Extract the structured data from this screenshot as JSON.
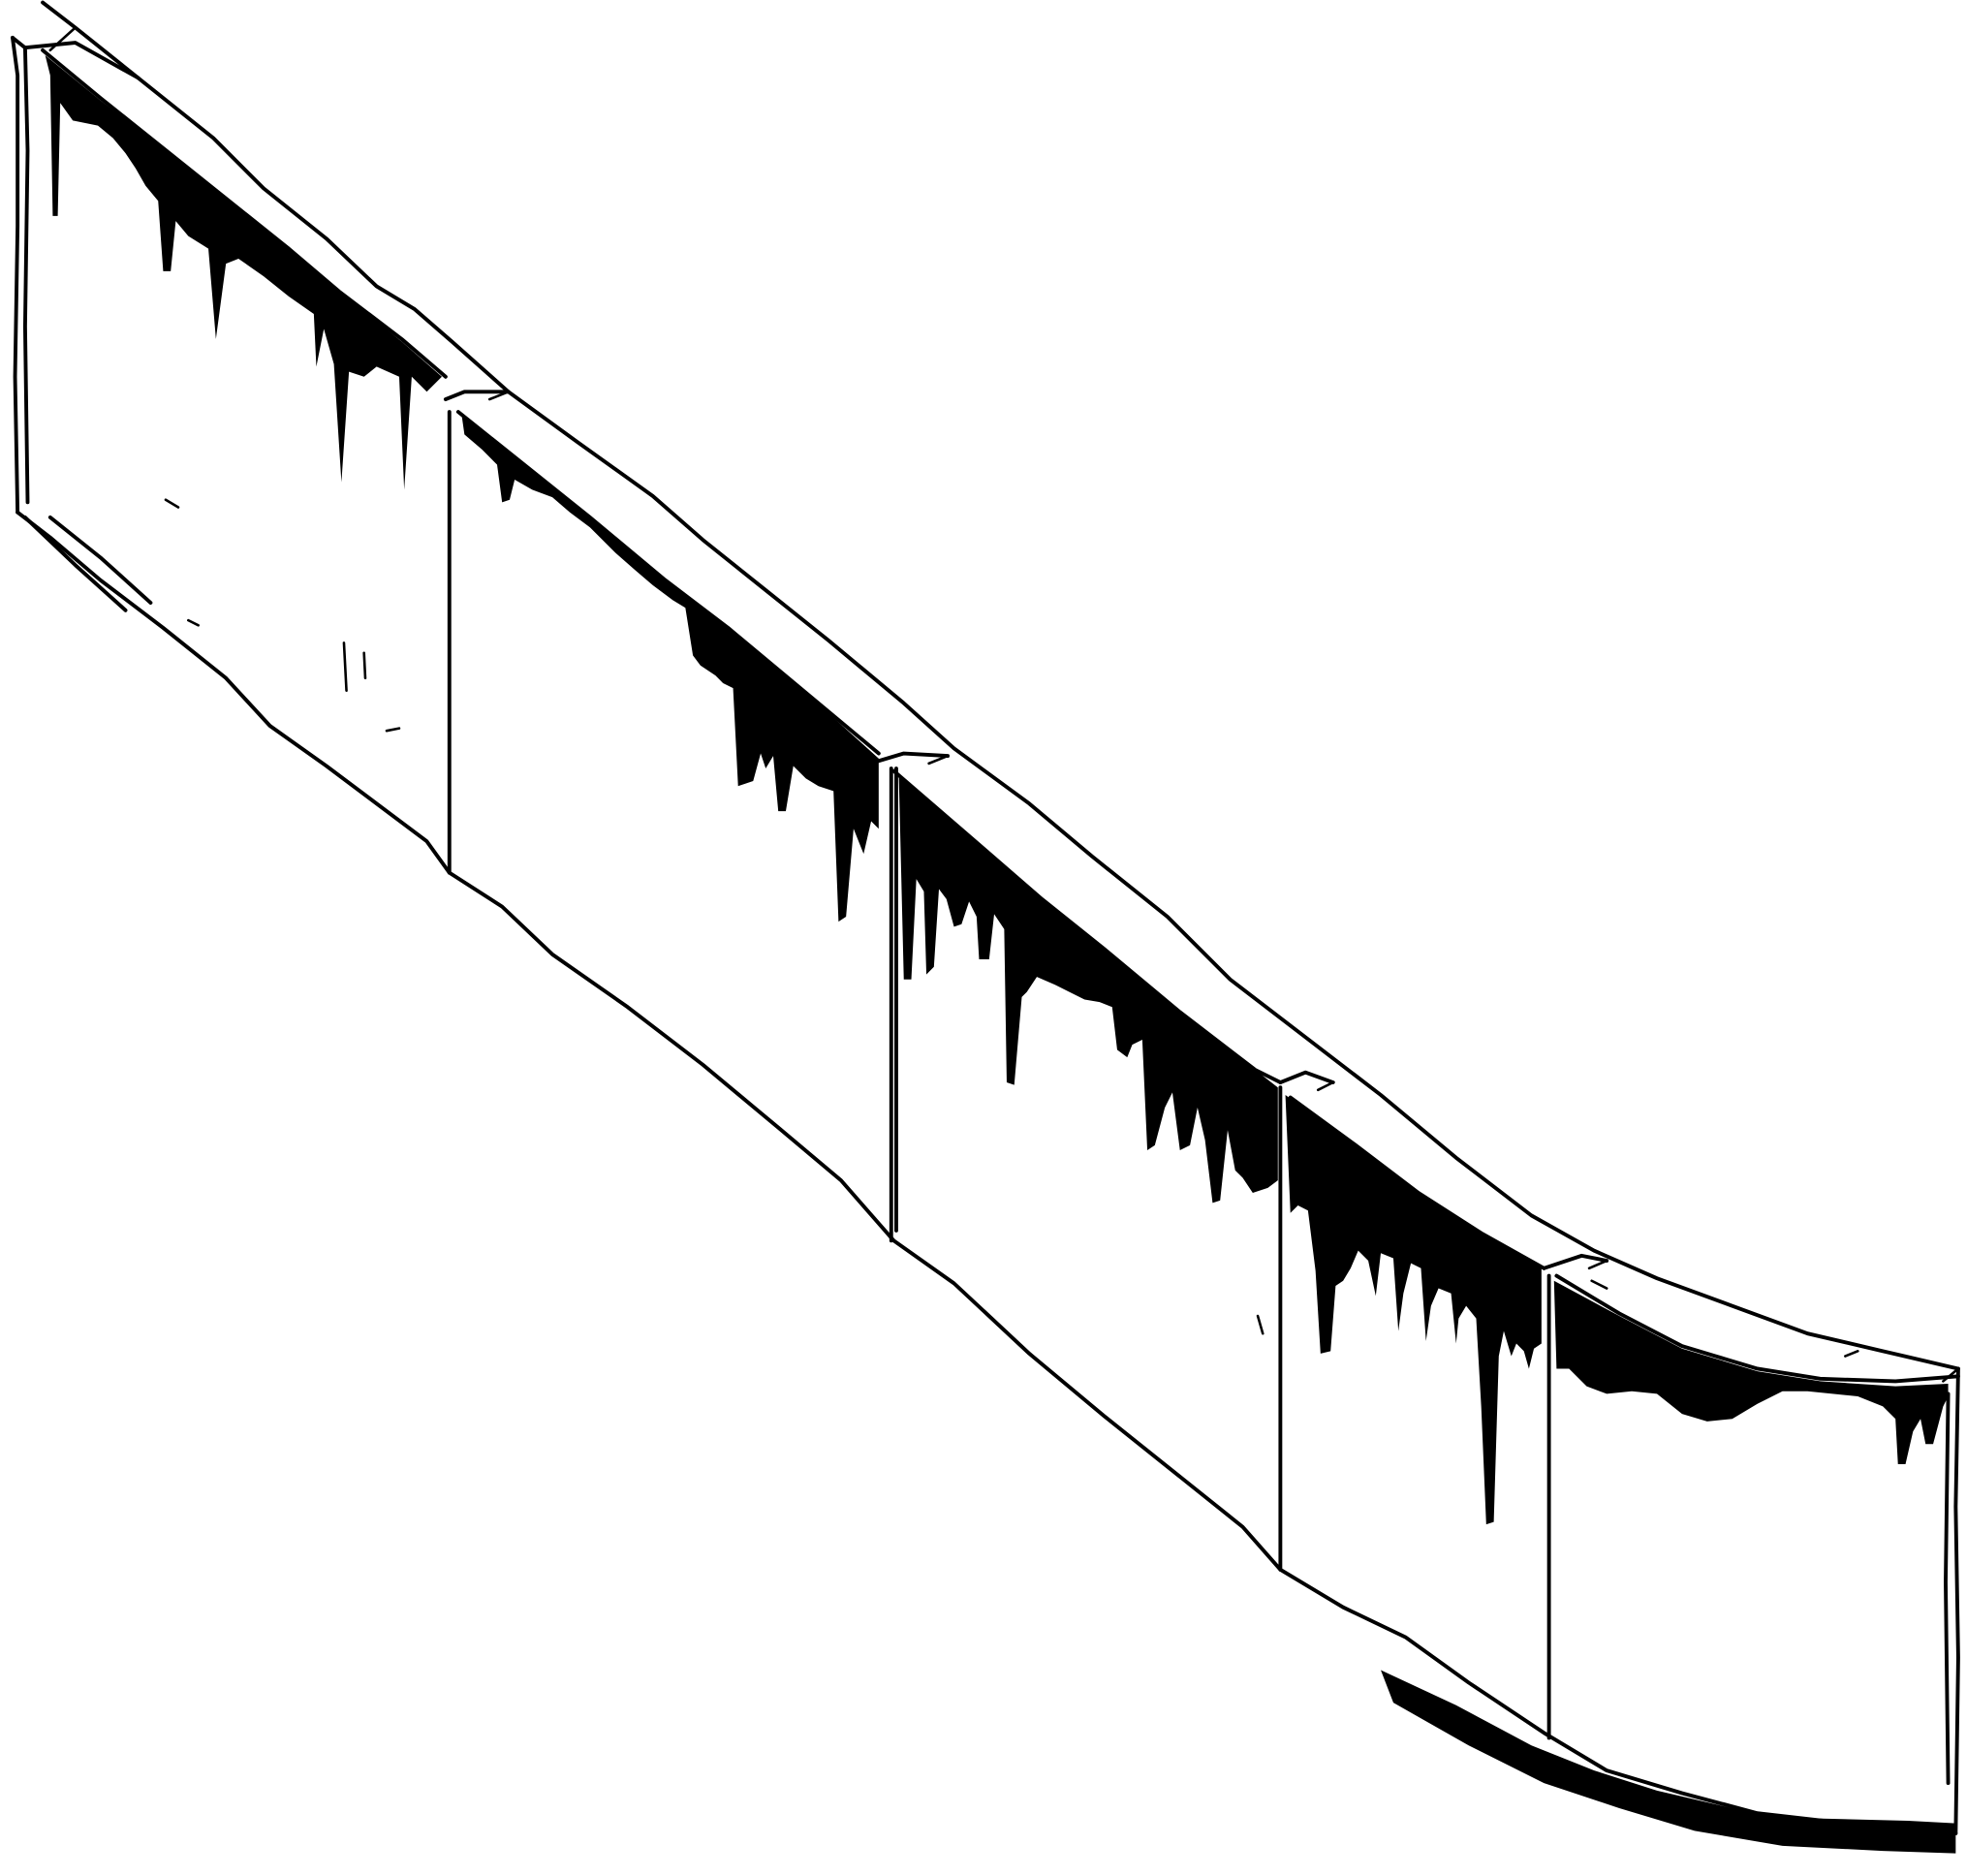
{
  "artwork": {
    "subject": "",
    "colors": {
      "ink": "#000000",
      "paper": "#ffffff"
    },
    "segments": [
      {
        "index": 1
      },
      {
        "index": 2
      },
      {
        "index": 3
      },
      {
        "index": 4
      },
      {
        "index": 5
      }
    ]
  }
}
